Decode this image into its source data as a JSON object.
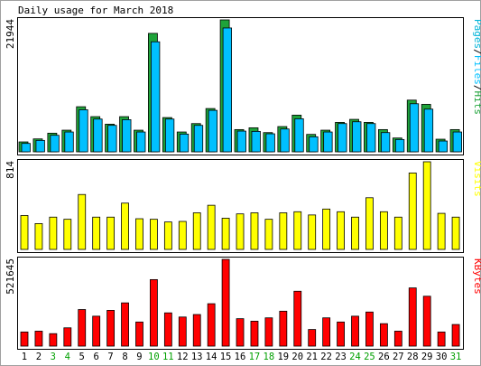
{
  "title": "Daily usage for March 2018",
  "colors": {
    "background": "#ffffff",
    "panel_border": "#000000",
    "hits": "#1fa33a",
    "files": "#00c0ff",
    "pages": "#00b4d8",
    "visits": "#ffff00",
    "kbytes": "#ff0000",
    "weekend_label": "#00a000",
    "weekday_label": "#000000"
  },
  "chart_data": [
    {
      "type": "bar",
      "panel": "hits-files-pages",
      "legend": [
        {
          "label": "Pages",
          "color": "#00b4d8"
        },
        {
          "label": "Files",
          "color": "#00c0ff"
        },
        {
          "label": "Hits",
          "color": "#1fa33a"
        }
      ],
      "y_max_label": "21944",
      "ylim": [
        0,
        21944
      ],
      "categories": [
        "1",
        "2",
        "3",
        "4",
        "5",
        "6",
        "7",
        "8",
        "9",
        "10",
        "11",
        "12",
        "13",
        "14",
        "15",
        "16",
        "17",
        "18",
        "19",
        "20",
        "21",
        "22",
        "23",
        "24",
        "25",
        "26",
        "27",
        "28",
        "29",
        "30",
        "31"
      ],
      "series": [
        {
          "name": "Hits",
          "values": [
            1650,
            2150,
            3100,
            3600,
            7500,
            5850,
            4600,
            5850,
            3600,
            19700,
            5700,
            3300,
            4700,
            7200,
            21944,
            3700,
            4000,
            3200,
            4200,
            6100,
            2900,
            3600,
            4900,
            5400,
            4900,
            3700,
            2300,
            8600,
            7900,
            2100,
            3700
          ]
        },
        {
          "name": "Files",
          "values": [
            1400,
            1900,
            2750,
            3300,
            7000,
            5450,
            4400,
            5350,
            3300,
            18300,
            5450,
            2950,
            4400,
            6900,
            20600,
            3450,
            3400,
            3000,
            3800,
            5500,
            2500,
            3300,
            4700,
            5000,
            4700,
            3200,
            2050,
            8000,
            7100,
            1800,
            3300
          ]
        }
      ]
    },
    {
      "type": "bar",
      "panel": "visits",
      "legend": [
        {
          "label": "Visits",
          "color": "#ffff00"
        }
      ],
      "y_max_label": "814",
      "ylim": [
        0,
        814
      ],
      "categories": [
        "1",
        "2",
        "3",
        "4",
        "5",
        "6",
        "7",
        "8",
        "9",
        "10",
        "11",
        "12",
        "13",
        "14",
        "15",
        "16",
        "17",
        "18",
        "19",
        "20",
        "21",
        "22",
        "23",
        "24",
        "25",
        "26",
        "27",
        "28",
        "29",
        "30",
        "31"
      ],
      "series": [
        {
          "name": "Visits",
          "values": [
            315,
            240,
            300,
            280,
            510,
            300,
            300,
            430,
            285,
            280,
            255,
            260,
            340,
            410,
            290,
            330,
            340,
            280,
            340,
            350,
            320,
            375,
            350,
            300,
            480,
            350,
            300,
            710,
            814,
            335,
            300
          ]
        }
      ]
    },
    {
      "type": "bar",
      "panel": "kbytes",
      "legend": [
        {
          "label": "KBytes",
          "color": "#ff0000"
        }
      ],
      "y_max_label": "521645",
      "ylim": [
        0,
        521645
      ],
      "categories": [
        "1",
        "2",
        "3",
        "4",
        "5",
        "6",
        "7",
        "8",
        "9",
        "10",
        "11",
        "12",
        "13",
        "14",
        "15",
        "16",
        "17",
        "18",
        "19",
        "20",
        "21",
        "22",
        "23",
        "24",
        "25",
        "26",
        "27",
        "28",
        "29",
        "30",
        "31"
      ],
      "series": [
        {
          "name": "KBytes",
          "values": [
            85000,
            90000,
            75000,
            110000,
            220000,
            180000,
            215000,
            260000,
            145000,
            400000,
            200000,
            175000,
            190000,
            255000,
            521645,
            165000,
            150000,
            170000,
            210000,
            330000,
            100000,
            170000,
            145000,
            180000,
            205000,
            135000,
            90000,
            350000,
            300000,
            85000,
            130000
          ]
        }
      ]
    }
  ],
  "x_labels": [
    {
      "label": "1",
      "weekend": false
    },
    {
      "label": "2",
      "weekend": false
    },
    {
      "label": "3",
      "weekend": true
    },
    {
      "label": "4",
      "weekend": true
    },
    {
      "label": "5",
      "weekend": false
    },
    {
      "label": "6",
      "weekend": false
    },
    {
      "label": "7",
      "weekend": false
    },
    {
      "label": "8",
      "weekend": false
    },
    {
      "label": "9",
      "weekend": false
    },
    {
      "label": "10",
      "weekend": true
    },
    {
      "label": "11",
      "weekend": true
    },
    {
      "label": "12",
      "weekend": false
    },
    {
      "label": "13",
      "weekend": false
    },
    {
      "label": "14",
      "weekend": false
    },
    {
      "label": "15",
      "weekend": false
    },
    {
      "label": "16",
      "weekend": false
    },
    {
      "label": "17",
      "weekend": true
    },
    {
      "label": "18",
      "weekend": true
    },
    {
      "label": "19",
      "weekend": false
    },
    {
      "label": "20",
      "weekend": false
    },
    {
      "label": "21",
      "weekend": false
    },
    {
      "label": "22",
      "weekend": false
    },
    {
      "label": "23",
      "weekend": false
    },
    {
      "label": "24",
      "weekend": true
    },
    {
      "label": "25",
      "weekend": true
    },
    {
      "label": "26",
      "weekend": false
    },
    {
      "label": "27",
      "weekend": false
    },
    {
      "label": "28",
      "weekend": false
    },
    {
      "label": "29",
      "weekend": false
    },
    {
      "label": "30",
      "weekend": false
    },
    {
      "label": "31",
      "weekend": true
    }
  ]
}
